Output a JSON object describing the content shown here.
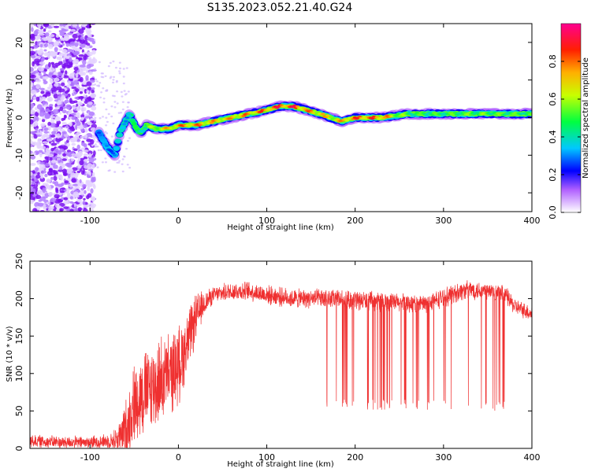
{
  "title": "S135.2023.052.21.40.G24",
  "colors": {
    "snr_line": "#ef3030",
    "axis": "#000000"
  },
  "chart_data": [
    {
      "type": "heatmap",
      "title": "S135.2023.052.21.40.G24",
      "xlabel": "Height of straight line (km)",
      "ylabel": "Frequency (Hz)",
      "xlim": [
        -168,
        400
      ],
      "ylim": [
        -25,
        25
      ],
      "xticks": [
        -100,
        0,
        100,
        200,
        300,
        400
      ],
      "yticks": [
        -20,
        -10,
        0,
        10,
        20
      ],
      "colorbar": {
        "label": "Normalized spectral amplitude",
        "range": [
          0,
          1
        ],
        "ticks": [
          0.0,
          0.2,
          0.4,
          0.6,
          0.8
        ],
        "colors": [
          "#ffffff",
          "#9a00ff",
          "#0000ff",
          "#00ffff",
          "#00ff00",
          "#ffff00",
          "#ff0000",
          "#ff00a0"
        ]
      },
      "ridge": {
        "x": [
          -90,
          -80,
          -72,
          -66,
          -60,
          -55,
          -48,
          -42,
          -36,
          -25,
          -10,
          0,
          20,
          40,
          60,
          80,
          100,
          115,
          130,
          145,
          160,
          172,
          185,
          200,
          230,
          260,
          300,
          340,
          400
        ],
        "y": [
          -4,
          -8,
          -10,
          -4,
          -1,
          1,
          -3,
          -4,
          -2,
          -3,
          -3,
          -2,
          -2,
          -1,
          0,
          1,
          2,
          3,
          3,
          2,
          1,
          0,
          -1,
          0,
          0,
          1,
          1,
          1,
          1
        ],
        "amp": [
          0.3,
          0.35,
          0.35,
          0.4,
          0.4,
          0.45,
          0.5,
          0.5,
          0.55,
          0.7,
          0.8,
          0.85,
          0.85,
          0.8,
          0.8,
          0.85,
          0.9,
          0.95,
          0.95,
          0.85,
          0.8,
          0.75,
          0.8,
          0.9,
          0.9,
          0.55,
          0.55,
          0.6,
          0.55
        ]
      },
      "noise_region_x": [
        -168,
        -95
      ]
    },
    {
      "type": "line",
      "xlabel": "Height of straight line (km)",
      "ylabel": "SNR (10 * v/v)",
      "xlim": [
        -168,
        400
      ],
      "ylim": [
        0,
        250
      ],
      "xticks": [
        -100,
        0,
        100,
        200,
        300,
        400
      ],
      "yticks": [
        0,
        50,
        100,
        150,
        200,
        250
      ],
      "series": [
        {
          "envelope_x": [
            -168,
            -130,
            -100,
            -75,
            -65,
            -58,
            -50,
            -40,
            -30,
            -20,
            -10,
            0,
            10,
            20,
            30,
            40,
            60,
            80,
            100,
            130,
            160,
            200,
            240,
            280,
            320,
            330,
            350,
            370,
            380,
            400
          ],
          "envelope_mean": [
            10,
            8,
            8,
            10,
            15,
            30,
            60,
            75,
            80,
            90,
            100,
            110,
            140,
            175,
            195,
            205,
            210,
            210,
            205,
            200,
            200,
            198,
            195,
            193,
            210,
            212,
            210,
            205,
            190,
            180
          ],
          "envelope_noise": [
            8,
            8,
            8,
            10,
            25,
            40,
            50,
            55,
            55,
            55,
            50,
            50,
            40,
            30,
            15,
            10,
            12,
            12,
            12,
            12,
            12,
            12,
            12,
            12,
            12,
            12,
            12,
            12,
            10,
            10
          ],
          "dropout_range": [
            165,
            370
          ],
          "dropout_floor": 50
        }
      ]
    }
  ]
}
